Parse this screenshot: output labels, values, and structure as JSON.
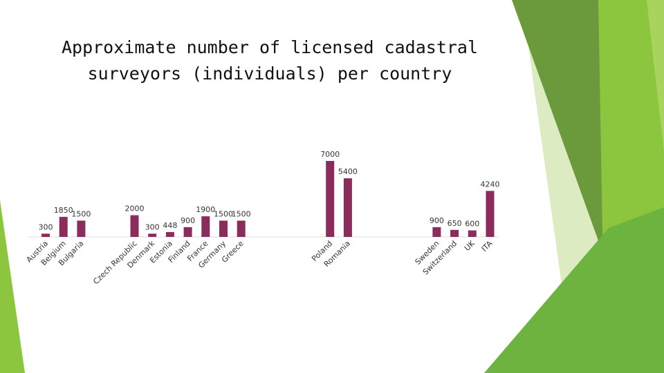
{
  "chart_data": {
    "type": "bar",
    "title": "Approximate number of licensed cadastral surveyors (individuals) per country",
    "categories": [
      "Austria",
      "Belgium",
      "Bulgaria",
      null,
      null,
      "Czech Republic",
      "Denmark",
      "Estonia",
      "Finland",
      "France",
      "Germany",
      "Greece",
      null,
      null,
      null,
      null,
      "Poland",
      "Romania",
      null,
      null,
      null,
      null,
      "Sweden",
      "Switzerland",
      "UK",
      "ITA"
    ],
    "values": [
      300,
      1850,
      1500,
      null,
      null,
      2000,
      300,
      448,
      900,
      1900,
      1500,
      1500,
      null,
      null,
      null,
      null,
      7000,
      5400,
      null,
      null,
      null,
      null,
      900,
      650,
      600,
      4240
    ],
    "color": "#8b2d5c"
  }
}
